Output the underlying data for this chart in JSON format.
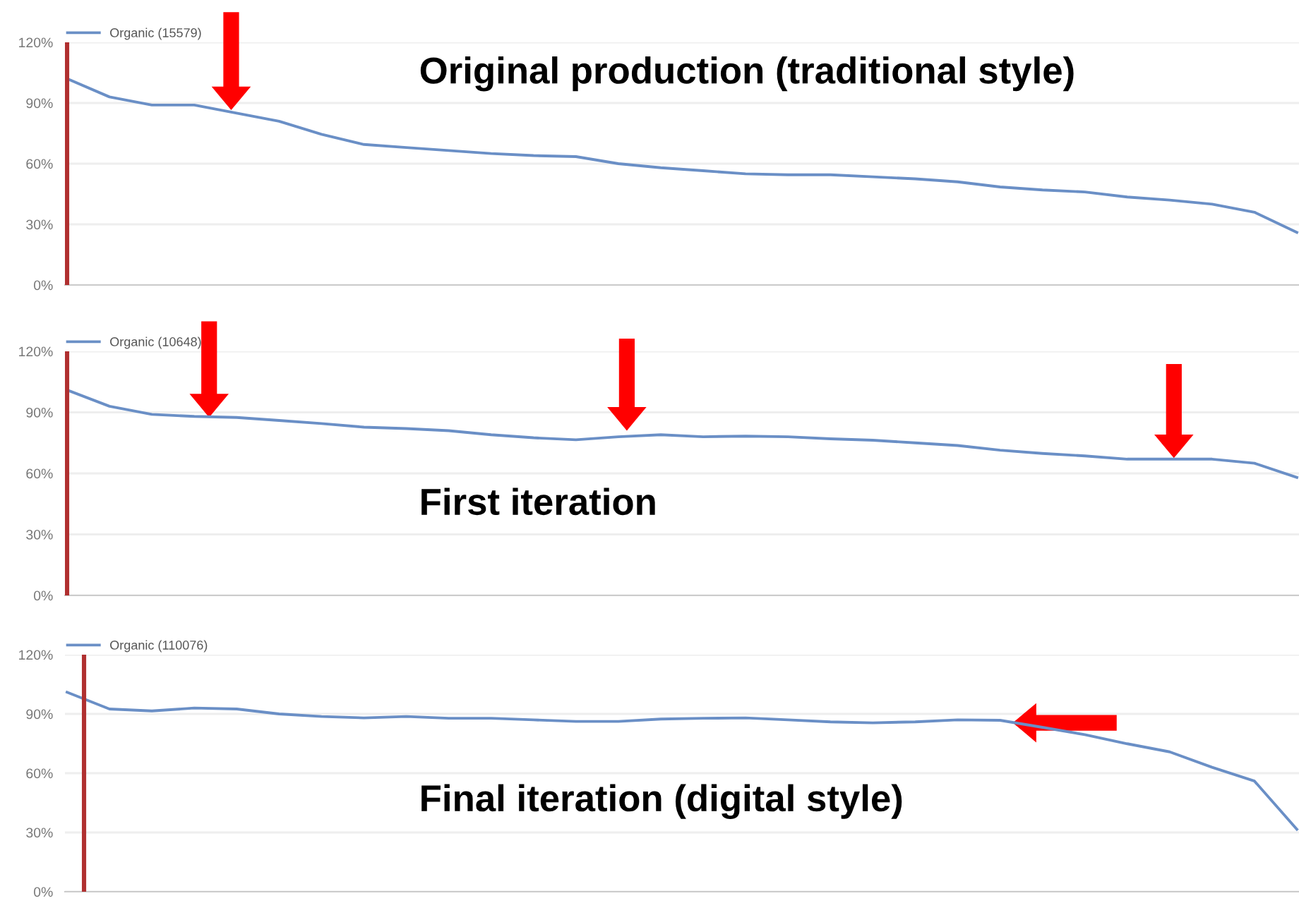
{
  "chart_data": [
    {
      "type": "line",
      "title": "Original production (traditional style)",
      "categories": [
        null,
        null,
        null,
        null,
        null,
        null,
        null,
        null,
        null,
        null,
        null,
        null,
        null,
        null,
        null,
        null,
        null,
        null,
        null,
        null,
        null,
        null,
        null,
        null,
        null,
        null,
        null,
        null,
        null,
        null
      ],
      "series": [
        {
          "name": "Organic (15579)",
          "color": "#6a8fc6",
          "values": [
            102,
            93,
            89,
            89,
            85,
            81,
            74.5,
            69.5,
            68,
            66.5,
            65,
            64,
            63.5,
            60,
            58,
            56.5,
            55,
            54.5,
            54.5,
            53.5,
            52.5,
            51,
            48.5,
            47,
            46,
            43.5,
            42,
            40,
            36,
            26
          ]
        }
      ],
      "ylim": [
        0,
        120
      ],
      "yticks": [
        {
          "value": 0,
          "label": "0%"
        },
        {
          "value": 30,
          "label": "30%"
        },
        {
          "value": 60,
          "label": "60%"
        },
        {
          "value": 90,
          "label": "90%"
        },
        {
          "value": 120,
          "label": "120%"
        }
      ],
      "grid": "y",
      "legend": "top left",
      "tick_labels": "y"
    },
    {
      "type": "line",
      "title": "First iteration",
      "categories": [
        null,
        null,
        null,
        null,
        null,
        null,
        null,
        null,
        null,
        null,
        null,
        null,
        null,
        null,
        null,
        null,
        null,
        null,
        null,
        null,
        null,
        null,
        null,
        null,
        null,
        null,
        null,
        null,
        null,
        null
      ],
      "series": [
        {
          "name": "Organic (10648)",
          "color": "#6a8fc6",
          "values": [
            101,
            93,
            89,
            88,
            87.5,
            86,
            84.5,
            82.7,
            82,
            81,
            79,
            77.5,
            76.5,
            78,
            79,
            78,
            78.3,
            78,
            77,
            76.3,
            75,
            73.7,
            71.4,
            69.8,
            68.6,
            67,
            67,
            67,
            65,
            58
          ]
        }
      ],
      "ylim": [
        0,
        120
      ],
      "yticks": [
        {
          "value": 0,
          "label": "0%"
        },
        {
          "value": 30,
          "label": "30%"
        },
        {
          "value": 60,
          "label": "60%"
        },
        {
          "value": 90,
          "label": "90%"
        },
        {
          "value": 120,
          "label": "120%"
        }
      ],
      "grid": "y",
      "legend": "top left",
      "tick_labels": "y"
    },
    {
      "type": "line",
      "title": "Final iteration (digital style)",
      "categories": [
        null,
        null,
        null,
        null,
        null,
        null,
        null,
        null,
        null,
        null,
        null,
        null,
        null,
        null,
        null,
        null,
        null,
        null,
        null,
        null,
        null,
        null,
        null,
        null,
        null,
        null,
        null,
        null,
        null,
        null
      ],
      "series": [
        {
          "name": "Organic (110076)",
          "color": "#6a8fc6",
          "values": [
            101,
            92.5,
            91.5,
            93,
            92.5,
            90,
            88.7,
            88,
            88.7,
            87.8,
            87.8,
            87,
            86.2,
            86.2,
            87.4,
            87.8,
            88,
            87,
            86,
            85.5,
            86,
            87,
            86.8,
            83.2,
            79.5,
            74.9,
            70.8,
            63,
            56,
            31.6
          ]
        }
      ],
      "ylim": [
        0,
        120
      ],
      "yticks": [
        {
          "value": 0,
          "label": "0%"
        },
        {
          "value": 30,
          "label": "30%"
        },
        {
          "value": 60,
          "label": "60%"
        },
        {
          "value": 90,
          "label": "90%"
        },
        {
          "value": 120,
          "label": "120%"
        }
      ],
      "grid": "y",
      "legend": "top left",
      "tick_labels": "y"
    }
  ]
}
